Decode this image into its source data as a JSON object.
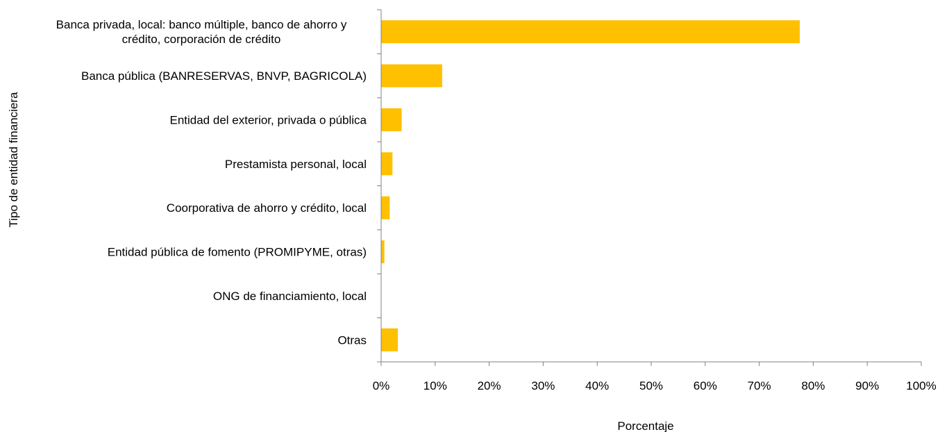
{
  "chart_data": {
    "type": "bar",
    "orientation": "horizontal",
    "categories": [
      [
        "Banca privada, local: banco múltiple,  banco de ahorro y",
        "crédito, corporación de crédito"
      ],
      [
        "Banca pública (BANRESERVAS, BNVP, BAGRICOLA)"
      ],
      [
        "Entidad del exterior, privada o pública"
      ],
      [
        "Prestamista personal, local"
      ],
      [
        "Coorporativa de ahorro y crédito, local"
      ],
      [
        "Entidad pública de fomento (PROMIPYME, otras)"
      ],
      [
        "ONG de financiamiento, local"
      ],
      [
        "Otras"
      ]
    ],
    "values": [
      77.5,
      11.3,
      3.8,
      2.1,
      1.6,
      0.6,
      0,
      3.1
    ],
    "xlabel": "Porcentaje",
    "ylabel": "Tipo de entidad financiera",
    "xlim": [
      0,
      100
    ],
    "x_ticks": [
      "0%",
      "10%",
      "20%",
      "30%",
      "40%",
      "50%",
      "60%",
      "70%",
      "80%",
      "90%",
      "100%"
    ],
    "grid": false,
    "legend": "none",
    "bar_color": "#FFC000",
    "axis_color": "#808080"
  }
}
